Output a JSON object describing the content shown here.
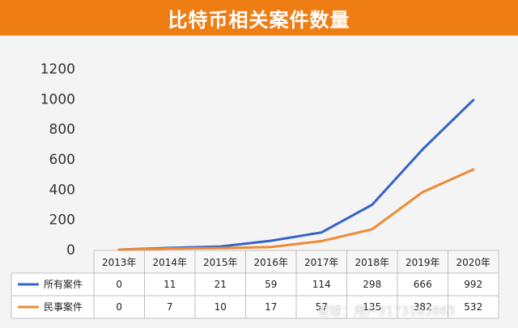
{
  "header": {
    "title": "比特币相关案件数量"
  },
  "watermark": "雪球：用户3173183863",
  "colors": {
    "title_bar": "#ee7d14",
    "series_all": "#3563c9",
    "series_civil": "#ee8a34"
  },
  "chart_data": {
    "type": "line",
    "title": "比特币相关案件数量",
    "x": [
      "2013年",
      "2014年",
      "2015年",
      "2016年",
      "2017年",
      "2018年",
      "2019年",
      "2020年"
    ],
    "series": [
      {
        "name": "所有案件",
        "values": [
          0,
          11,
          21,
          59,
          114,
          298,
          666,
          992
        ]
      },
      {
        "name": "民事案件",
        "values": [
          0,
          7,
          10,
          17,
          57,
          135,
          382,
          532
        ]
      }
    ],
    "yticks": [
      "1200",
      "1000",
      "800",
      "600",
      "400",
      "200",
      "0"
    ],
    "ylim": [
      0,
      1200
    ],
    "table_rows": [
      {
        "label": "所有案件",
        "cells": [
          "0",
          "11",
          "21",
          "59",
          "114",
          "298",
          "666",
          "992"
        ]
      },
      {
        "label": "民事案件",
        "cells": [
          "0",
          "7",
          "10",
          "17",
          "57",
          "135",
          "382",
          "532"
        ]
      }
    ],
    "grid": false,
    "legend": "table"
  }
}
